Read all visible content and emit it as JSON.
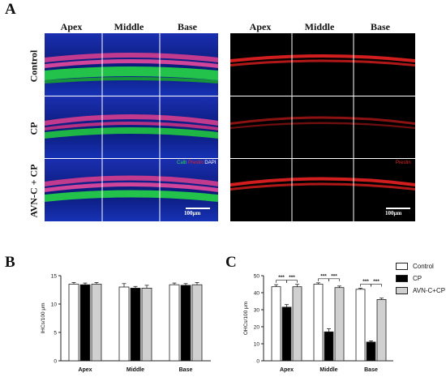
{
  "panel_a": {
    "letter": "A",
    "columns": [
      "Apex",
      "Middle",
      "Base"
    ],
    "rows": [
      "Control",
      "CP",
      "AVN-C + CP"
    ],
    "merge_legend": {
      "calb": "Calb",
      "prestin": "Prestin",
      "dapi": "DAPI"
    },
    "prestin_label": "Prestin",
    "scale_bar_left": "100μm",
    "scale_bar_right": "100μm",
    "colors": {
      "calb": "#31d455",
      "prestin": "#e32424",
      "dapi": "#2040c8"
    }
  },
  "panel_b": {
    "letter": "B",
    "chart_data": {
      "type": "bar",
      "categories": [
        "Apex",
        "Middle",
        "Base"
      ],
      "series": [
        {
          "name": "Control",
          "values": [
            13.5,
            13.0,
            13.4
          ],
          "errors": [
            0.3,
            0.6,
            0.3
          ],
          "color": "#ffffff"
        },
        {
          "name": "CP",
          "values": [
            13.4,
            12.8,
            13.3
          ],
          "errors": [
            0.3,
            0.3,
            0.3
          ],
          "color": "#000000"
        },
        {
          "name": "AVN-C+CP",
          "values": [
            13.5,
            12.8,
            13.4
          ],
          "errors": [
            0.3,
            0.5,
            0.4
          ],
          "color": "#d0d0d0"
        }
      ],
      "ylabel": "IHCs/100 μm",
      "xlabel": "",
      "ylim": [
        0,
        15
      ],
      "yticks": [
        "0",
        "5",
        "10",
        "15"
      ],
      "grid": false
    }
  },
  "panel_c": {
    "letter": "C",
    "chart_data": {
      "type": "bar",
      "categories": [
        "Apex",
        "Middle",
        "Base"
      ],
      "series": [
        {
          "name": "Control",
          "values": [
            43.5,
            45.0,
            42.0
          ],
          "errors": [
            1.2,
            0.8,
            0.6
          ],
          "color": "#ffffff"
        },
        {
          "name": "CP",
          "values": [
            31.5,
            17.0,
            11.0
          ],
          "errors": [
            1.5,
            1.8,
            0.7
          ],
          "color": "#000000"
        },
        {
          "name": "AVN-C+CP",
          "values": [
            43.5,
            43.0,
            36.0
          ],
          "errors": [
            1.4,
            0.9,
            0.8
          ],
          "color": "#d0d0d0"
        }
      ],
      "ylabel": "OHCs/100 μm",
      "xlabel": "",
      "ylim": [
        0,
        50
      ],
      "yticks": [
        "0",
        "10",
        "20",
        "30",
        "40",
        "50"
      ],
      "grid": false,
      "significance": "***"
    }
  },
  "legend": {
    "items": [
      {
        "label": "Control",
        "color": "#ffffff"
      },
      {
        "label": "CP",
        "color": "#000000"
      },
      {
        "label": "AVN-C+CP",
        "color": "#d0d0d0"
      }
    ]
  }
}
